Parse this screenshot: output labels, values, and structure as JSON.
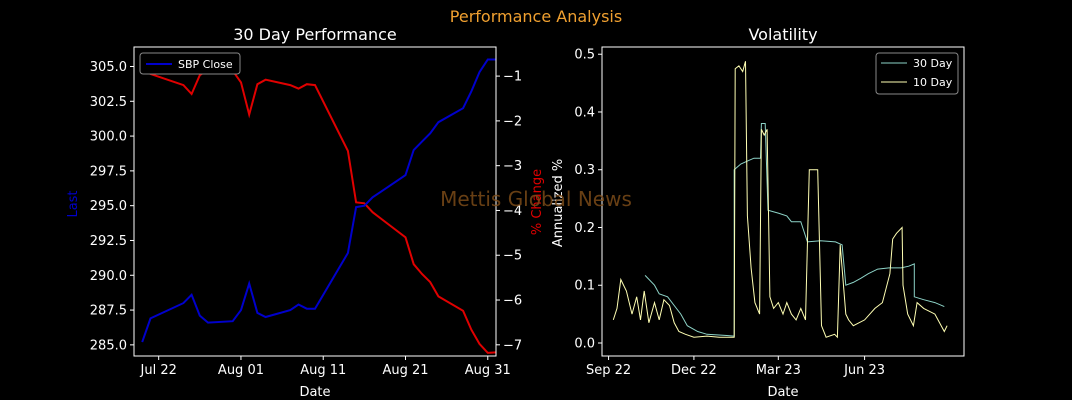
{
  "suptitle": "Performance Analysis",
  "watermark": "Mettis Global News",
  "colors": {
    "background": "#000000",
    "suptitle": "#f0a030",
    "price_line": "#0000cc",
    "pct_line": "#e00000",
    "vol30": "#8dd3c7",
    "vol10": "#ffffb3",
    "watermark": "#7a4a18",
    "axis": "#ffffff"
  },
  "chart_data": [
    {
      "type": "line",
      "title": "30 Day Performance",
      "xlabel": "Date",
      "ylabel": "Last",
      "y2label": "% Change",
      "x_ticks": [
        "Jul 22",
        "Aug 01",
        "Aug 11",
        "Aug 21",
        "Aug 31"
      ],
      "x_range": [
        "2023-07-19",
        "2023-09-01"
      ],
      "ylim": [
        284.2,
        306.4
      ],
      "y_ticks": [
        "285.0",
        "287.5",
        "290.0",
        "292.5",
        "295.0",
        "297.5",
        "300.0",
        "302.5",
        "305.0"
      ],
      "y2lim": [
        -7.25,
        -0.35
      ],
      "y2_ticks": [
        "−1",
        "−2",
        "−3",
        "−4",
        "−5",
        "−6",
        "−7"
      ],
      "legend": {
        "position": "top-left",
        "entries": [
          "SBP Close"
        ]
      },
      "x": [
        "2023-07-20",
        "2023-07-21",
        "2023-07-25",
        "2023-07-26",
        "2023-07-27",
        "2023-07-28",
        "2023-07-31",
        "2023-08-01",
        "2023-08-02",
        "2023-08-03",
        "2023-08-04",
        "2023-08-07",
        "2023-08-08",
        "2023-08-09",
        "2023-08-10",
        "2023-08-14",
        "2023-08-15",
        "2023-08-16",
        "2023-08-17",
        "2023-08-18",
        "2023-08-21",
        "2023-08-22",
        "2023-08-23",
        "2023-08-24",
        "2023-08-25",
        "2023-08-28",
        "2023-08-29",
        "2023-08-30",
        "2023-08-31",
        "2023-09-01"
      ],
      "series": [
        {
          "name": "SBP Close",
          "axis": "left",
          "values": [
            285.2,
            286.9,
            288.0,
            288.6,
            287.1,
            286.6,
            286.7,
            287.5,
            289.4,
            287.3,
            287.0,
            287.5,
            287.9,
            287.6,
            287.6,
            291.6,
            294.9,
            295.0,
            295.6,
            296.0,
            297.2,
            299.0,
            299.6,
            300.2,
            301.0,
            302.0,
            303.2,
            304.6,
            305.5,
            305.5
          ]
        },
        {
          "name": "% Change",
          "axis": "right",
          "values": [
            -0.52,
            -0.95,
            -1.2,
            -1.4,
            -0.98,
            -0.86,
            -0.88,
            -1.14,
            -1.86,
            -1.18,
            -1.08,
            -1.2,
            -1.28,
            -1.18,
            -1.2,
            -2.67,
            -3.82,
            -3.84,
            -4.04,
            -4.18,
            -4.6,
            -5.2,
            -5.42,
            -5.6,
            -5.92,
            -6.24,
            -6.66,
            -6.98,
            -7.18,
            -7.17
          ]
        }
      ]
    },
    {
      "type": "line",
      "title": "Volatility",
      "xlabel": "Date",
      "ylabel": "Annualized %",
      "x_ticks": [
        "Sep 22",
        "Dec 22",
        "Mar 23",
        "Jun 23"
      ],
      "x_range": [
        "2022-08-25",
        "2023-09-15"
      ],
      "ylim": [
        -0.0225,
        0.5125
      ],
      "y_ticks": [
        "0.0",
        "0.1",
        "0.2",
        "0.3",
        "0.4",
        "0.5"
      ],
      "legend": {
        "position": "top-right",
        "entries": [
          "30 Day",
          "10 Day"
        ]
      },
      "series": [
        {
          "name": "30 Day",
          "points": [
            [
              "2022-10-10",
              0.117
            ],
            [
              "2022-10-20",
              0.1
            ],
            [
              "2022-10-25",
              0.085
            ],
            [
              "2022-11-03",
              0.08
            ],
            [
              "2022-11-10",
              0.065
            ],
            [
              "2022-11-17",
              0.05
            ],
            [
              "2022-11-24",
              0.03
            ],
            [
              "2022-12-05",
              0.02
            ],
            [
              "2022-12-15",
              0.015
            ],
            [
              "2023-01-05",
              0.013
            ],
            [
              "2023-01-13",
              0.012
            ],
            [
              "2023-01-13",
              0.3
            ],
            [
              "2023-01-20",
              0.31
            ],
            [
              "2023-01-27",
              0.315
            ],
            [
              "2023-02-03",
              0.32
            ],
            [
              "2023-02-10",
              0.32
            ],
            [
              "2023-02-11",
              0.38
            ],
            [
              "2023-02-15",
              0.38
            ],
            [
              "2023-02-18",
              0.23
            ],
            [
              "2023-03-01",
              0.225
            ],
            [
              "2023-03-10",
              0.22
            ],
            [
              "2023-03-15",
              0.21
            ],
            [
              "2023-03-25",
              0.21
            ],
            [
              "2023-04-01",
              0.175
            ],
            [
              "2023-04-15",
              0.177
            ],
            [
              "2023-05-01",
              0.175
            ],
            [
              "2023-05-08",
              0.17
            ],
            [
              "2023-05-12",
              0.1
            ],
            [
              "2023-05-20",
              0.105
            ],
            [
              "2023-05-28",
              0.112
            ],
            [
              "2023-06-05",
              0.12
            ],
            [
              "2023-06-15",
              0.128
            ],
            [
              "2023-06-27",
              0.13
            ],
            [
              "2023-07-10",
              0.13
            ],
            [
              "2023-07-18",
              0.133
            ],
            [
              "2023-07-24",
              0.137
            ],
            [
              "2023-07-24",
              0.08
            ],
            [
              "2023-08-03",
              0.075
            ],
            [
              "2023-08-15",
              0.07
            ],
            [
              "2023-08-25",
              0.063
            ]
          ]
        },
        {
          "name": "10 Day",
          "points": [
            [
              "2022-09-06",
              0.04
            ],
            [
              "2022-09-10",
              0.06
            ],
            [
              "2022-09-14",
              0.11
            ],
            [
              "2022-09-20",
              0.09
            ],
            [
              "2022-09-26",
              0.05
            ],
            [
              "2022-10-01",
              0.08
            ],
            [
              "2022-10-05",
              0.04
            ],
            [
              "2022-10-09",
              0.09
            ],
            [
              "2022-10-14",
              0.035
            ],
            [
              "2022-10-20",
              0.07
            ],
            [
              "2022-10-25",
              0.04
            ],
            [
              "2022-10-30",
              0.075
            ],
            [
              "2022-11-05",
              0.065
            ],
            [
              "2022-11-10",
              0.035
            ],
            [
              "2022-11-15",
              0.02
            ],
            [
              "2022-11-22",
              0.015
            ],
            [
              "2022-12-01",
              0.01
            ],
            [
              "2022-12-15",
              0.012
            ],
            [
              "2022-12-28",
              0.01
            ],
            [
              "2023-01-13",
              0.01
            ],
            [
              "2023-01-14",
              0.475
            ],
            [
              "2023-01-18",
              0.48
            ],
            [
              "2023-01-22",
              0.47
            ],
            [
              "2023-01-25",
              0.488
            ],
            [
              "2023-01-27",
              0.22
            ],
            [
              "2023-01-31",
              0.13
            ],
            [
              "2023-02-04",
              0.07
            ],
            [
              "2023-02-09",
              0.05
            ],
            [
              "2023-02-11",
              0.37
            ],
            [
              "2023-02-14",
              0.36
            ],
            [
              "2023-02-17",
              0.37
            ],
            [
              "2023-02-20",
              0.08
            ],
            [
              "2023-02-24",
              0.06
            ],
            [
              "2023-03-01",
              0.07
            ],
            [
              "2023-03-06",
              0.05
            ],
            [
              "2023-03-10",
              0.07
            ],
            [
              "2023-03-15",
              0.05
            ],
            [
              "2023-03-20",
              0.04
            ],
            [
              "2023-03-25",
              0.06
            ],
            [
              "2023-03-30",
              0.04
            ],
            [
              "2023-04-03",
              0.3
            ],
            [
              "2023-04-12",
              0.3
            ],
            [
              "2023-04-16",
              0.03
            ],
            [
              "2023-04-21",
              0.01
            ],
            [
              "2023-04-30",
              0.015
            ],
            [
              "2023-05-03",
              0.01
            ],
            [
              "2023-05-06",
              0.17
            ],
            [
              "2023-05-12",
              0.05
            ],
            [
              "2023-05-15",
              0.04
            ],
            [
              "2023-05-20",
              0.03
            ],
            [
              "2023-06-01",
              0.04
            ],
            [
              "2023-06-12",
              0.06
            ],
            [
              "2023-06-20",
              0.07
            ],
            [
              "2023-06-28",
              0.12
            ],
            [
              "2023-07-01",
              0.18
            ],
            [
              "2023-07-05",
              0.19
            ],
            [
              "2023-07-11",
              0.2
            ],
            [
              "2023-07-12",
              0.1
            ],
            [
              "2023-07-17",
              0.05
            ],
            [
              "2023-07-23",
              0.03
            ],
            [
              "2023-07-27",
              0.07
            ],
            [
              "2023-08-03",
              0.06
            ],
            [
              "2023-08-15",
              0.05
            ],
            [
              "2023-08-25",
              0.02
            ],
            [
              "2023-08-28",
              0.03
            ]
          ]
        }
      ]
    }
  ]
}
